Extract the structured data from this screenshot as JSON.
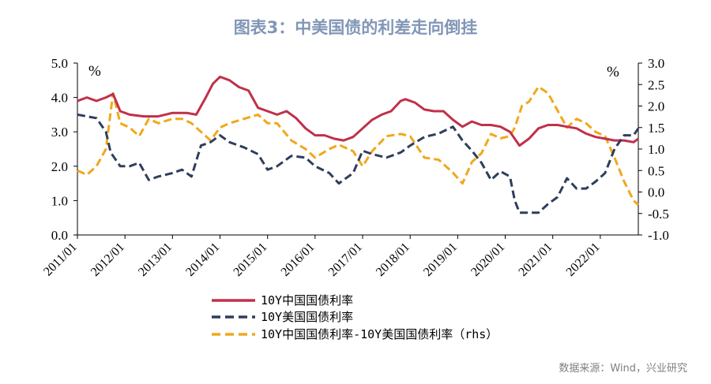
{
  "chart_data": {
    "type": "line",
    "title": "图表3：中美国债的利差走向倒挂",
    "left_unit": "%",
    "right_unit": "%",
    "left_ylim": [
      0.0,
      5.0
    ],
    "right_ylim": [
      -1.0,
      3.0
    ],
    "left_ticks": [
      "0.0",
      "1.0",
      "2.0",
      "3.0",
      "4.0",
      "5.0"
    ],
    "right_ticks": [
      "-1.0",
      "-0.5",
      "0.0",
      "0.5",
      "1.0",
      "1.5",
      "2.0",
      "2.5",
      "3.0"
    ],
    "x_range": [
      2011.0,
      2022.8
    ],
    "x_ticks": [
      "2011/01",
      "2012/01",
      "2013/01",
      "2014/01",
      "2015/01",
      "2016/01",
      "2017/01",
      "2018/01",
      "2019/01",
      "2020/01",
      "2021/01",
      "2022/01"
    ],
    "series": [
      {
        "name": "10Y中国国债利率",
        "axis": "left",
        "color": "#c0304a",
        "style": "solid",
        "x": [
          2011.0,
          2011.2,
          2011.4,
          2011.6,
          2011.75,
          2011.9,
          2012.1,
          2012.4,
          2012.7,
          2013.0,
          2013.3,
          2013.5,
          2013.7,
          2013.85,
          2014.0,
          2014.2,
          2014.4,
          2014.6,
          2014.8,
          2015.0,
          2015.2,
          2015.4,
          2015.6,
          2015.8,
          2016.0,
          2016.2,
          2016.4,
          2016.6,
          2016.8,
          2017.0,
          2017.2,
          2017.4,
          2017.6,
          2017.8,
          2017.9,
          2018.1,
          2018.3,
          2018.5,
          2018.7,
          2018.9,
          2019.1,
          2019.3,
          2019.5,
          2019.7,
          2019.9,
          2020.1,
          2020.3,
          2020.5,
          2020.7,
          2020.9,
          2021.1,
          2021.3,
          2021.5,
          2021.7,
          2021.9,
          2022.1,
          2022.3,
          2022.5,
          2022.7,
          2022.8
        ],
        "y": [
          3.9,
          4.0,
          3.9,
          4.0,
          4.1,
          3.6,
          3.5,
          3.45,
          3.45,
          3.55,
          3.55,
          3.5,
          4.0,
          4.4,
          4.6,
          4.5,
          4.3,
          4.2,
          3.7,
          3.6,
          3.5,
          3.6,
          3.4,
          3.1,
          2.9,
          2.9,
          2.8,
          2.75,
          2.85,
          3.1,
          3.35,
          3.5,
          3.6,
          3.9,
          3.95,
          3.85,
          3.65,
          3.6,
          3.6,
          3.35,
          3.15,
          3.3,
          3.2,
          3.2,
          3.15,
          3.0,
          2.6,
          2.8,
          3.1,
          3.2,
          3.2,
          3.15,
          3.1,
          2.95,
          2.85,
          2.8,
          2.75,
          2.75,
          2.7,
          2.8
        ]
      },
      {
        "name": "10Y美国国债利率",
        "axis": "left",
        "color": "#2f3e5c",
        "style": "dashed",
        "x": [
          2011.0,
          2011.2,
          2011.4,
          2011.6,
          2011.7,
          2011.9,
          2012.1,
          2012.3,
          2012.5,
          2012.7,
          2013.0,
          2013.2,
          2013.4,
          2013.6,
          2013.8,
          2014.0,
          2014.2,
          2014.5,
          2014.8,
          2015.0,
          2015.2,
          2015.5,
          2015.8,
          2016.0,
          2016.3,
          2016.5,
          2016.8,
          2017.0,
          2017.2,
          2017.5,
          2017.8,
          2018.0,
          2018.3,
          2018.6,
          2018.9,
          2019.1,
          2019.3,
          2019.5,
          2019.7,
          2019.9,
          2020.1,
          2020.2,
          2020.3,
          2020.5,
          2020.7,
          2020.9,
          2021.1,
          2021.3,
          2021.5,
          2021.7,
          2021.9,
          2022.1,
          2022.3,
          2022.5,
          2022.7,
          2022.8
        ],
        "y": [
          3.5,
          3.45,
          3.4,
          3.0,
          2.4,
          2.0,
          2.0,
          2.1,
          1.6,
          1.7,
          1.8,
          1.9,
          1.7,
          2.6,
          2.7,
          2.9,
          2.7,
          2.55,
          2.35,
          1.9,
          2.0,
          2.3,
          2.25,
          2.0,
          1.8,
          1.5,
          1.8,
          2.45,
          2.35,
          2.25,
          2.4,
          2.6,
          2.85,
          2.95,
          3.15,
          2.75,
          2.45,
          2.1,
          1.6,
          1.85,
          1.7,
          1.0,
          0.65,
          0.65,
          0.65,
          0.9,
          1.1,
          1.65,
          1.35,
          1.35,
          1.55,
          1.8,
          2.5,
          2.9,
          2.9,
          3.1
        ]
      },
      {
        "name": "10Y中国国债利率-10Y美国国债利率（rhs）",
        "axis": "right",
        "color": "#f0a81c",
        "style": "dashed",
        "x": [
          2011.0,
          2011.2,
          2011.4,
          2011.6,
          2011.75,
          2011.9,
          2012.1,
          2012.3,
          2012.5,
          2012.7,
          2013.0,
          2013.2,
          2013.4,
          2013.6,
          2013.8,
          2014.0,
          2014.2,
          2014.5,
          2014.8,
          2015.0,
          2015.2,
          2015.5,
          2015.8,
          2016.0,
          2016.3,
          2016.5,
          2016.8,
          2017.0,
          2017.2,
          2017.5,
          2017.8,
          2018.0,
          2018.3,
          2018.6,
          2018.9,
          2019.1,
          2019.3,
          2019.5,
          2019.7,
          2019.9,
          2020.1,
          2020.2,
          2020.35,
          2020.5,
          2020.7,
          2020.9,
          2021.1,
          2021.3,
          2021.5,
          2021.7,
          2021.9,
          2022.1,
          2022.3,
          2022.5,
          2022.7,
          2022.8
        ],
        "y": [
          0.5,
          0.4,
          0.6,
          1.0,
          2.3,
          1.6,
          1.5,
          1.3,
          1.7,
          1.6,
          1.7,
          1.7,
          1.6,
          1.4,
          1.2,
          1.5,
          1.6,
          1.7,
          1.8,
          1.6,
          1.6,
          1.2,
          1.0,
          0.8,
          1.0,
          1.1,
          0.95,
          0.6,
          0.95,
          1.3,
          1.35,
          1.3,
          0.8,
          0.75,
          0.45,
          0.2,
          0.7,
          0.9,
          1.35,
          1.25,
          1.3,
          1.5,
          2.0,
          2.1,
          2.45,
          2.3,
          1.9,
          1.5,
          1.7,
          1.6,
          1.4,
          1.3,
          0.8,
          0.25,
          -0.2,
          -0.3
        ]
      }
    ],
    "legend_position": "bottom-center"
  },
  "source": "数据来源：Wind，兴业研究"
}
